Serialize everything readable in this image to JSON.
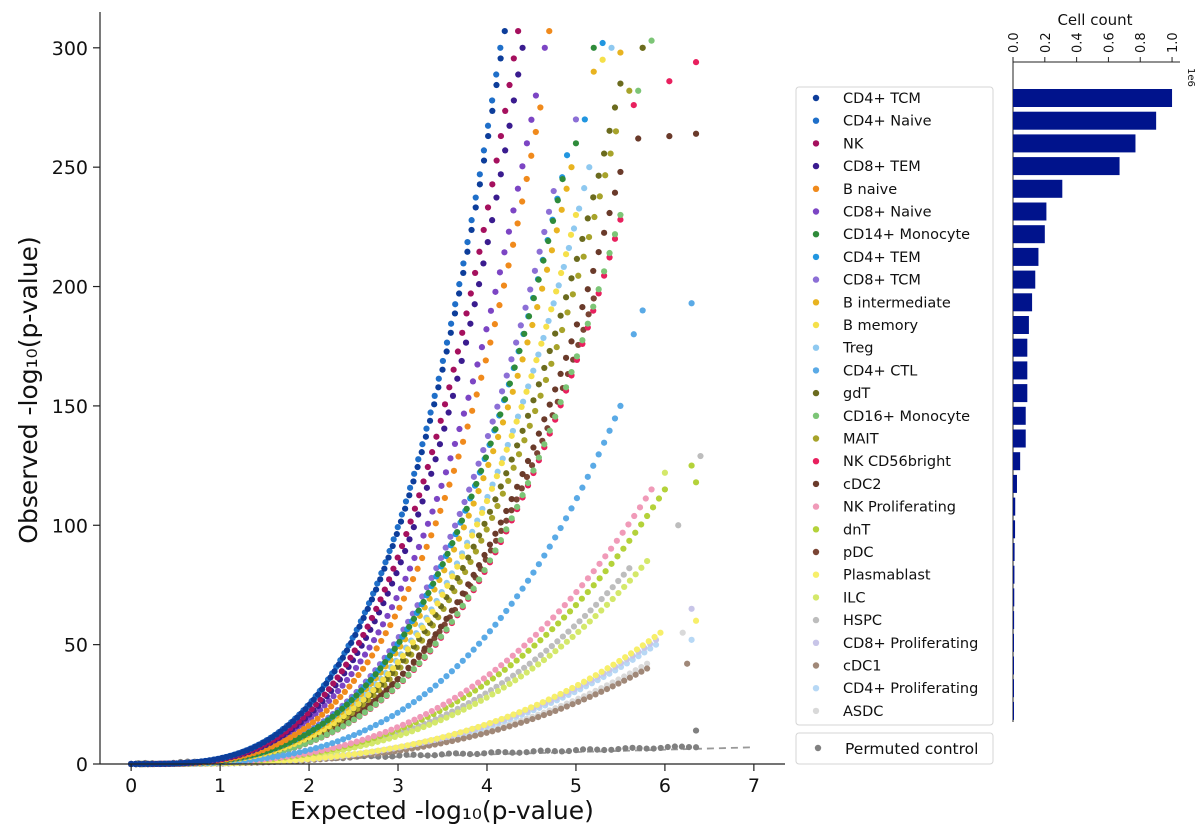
{
  "chart_data": [
    {
      "type": "scatter",
      "subtype": "qq-plot",
      "xlabel": "Expected -log₁₀(p-value)",
      "ylabel": "Observed -log₁₀(p-value)",
      "xlim": [
        -0.35,
        7.35
      ],
      "ylim": [
        0,
        315
      ],
      "xticks": [
        0,
        1,
        2,
        3,
        4,
        5,
        6,
        7
      ],
      "yticks": [
        0,
        50,
        100,
        150,
        200,
        250,
        300
      ],
      "legend_position": "right",
      "series": [
        {
          "name": "CD4+ TCM",
          "color": "#0d3d9a",
          "xmax": 4.2,
          "ymax": 307,
          "shape": 3.4,
          "tail": []
        },
        {
          "name": "CD4+ Naive",
          "color": "#1f6fc9",
          "xmax": 4.15,
          "ymax": 300,
          "shape": 3.4,
          "tail": []
        },
        {
          "name": "NK",
          "color": "#a5105e",
          "xmax": 4.35,
          "ymax": 307,
          "shape": 3.4,
          "tail": []
        },
        {
          "name": "CD8+ TEM",
          "color": "#3a1c8f",
          "xmax": 4.4,
          "ymax": 300,
          "shape": 3.4,
          "tail": []
        },
        {
          "name": "B naive",
          "color": "#f08a1c",
          "xmax": 4.6,
          "ymax": 275,
          "shape": 3.4,
          "tail": [
            [
              4.7,
              307
            ]
          ]
        },
        {
          "name": "CD8+ Naive",
          "color": "#7c45c4",
          "xmax": 4.55,
          "ymax": 280,
          "shape": 3.3,
          "tail": [
            [
              4.65,
              300
            ]
          ]
        },
        {
          "name": "CD14+ Monocyte",
          "color": "#2e8b3a",
          "xmax": 4.85,
          "ymax": 245,
          "shape": 3.3,
          "tail": [
            [
              5.0,
              260
            ],
            [
              5.2,
              300
            ]
          ]
        },
        {
          "name": "CD4+ TEM",
          "color": "#2196e0",
          "xmax": 4.9,
          "ymax": 255,
          "shape": 3.3,
          "tail": [
            [
              5.1,
              270
            ],
            [
              5.3,
              302
            ]
          ]
        },
        {
          "name": "CD8+ TCM",
          "color": "#8c6fd6",
          "xmax": 4.75,
          "ymax": 240,
          "shape": 3.3,
          "tail": [
            [
              5.0,
              270
            ]
          ]
        },
        {
          "name": "B intermediate",
          "color": "#e8b320",
          "xmax": 4.95,
          "ymax": 250,
          "shape": 3.3,
          "tail": [
            [
              5.2,
              290
            ],
            [
              5.5,
              298
            ]
          ]
        },
        {
          "name": "B memory",
          "color": "#f5e04a",
          "xmax": 5.0,
          "ymax": 230,
          "shape": 3.3,
          "tail": [
            [
              5.3,
              295
            ]
          ]
        },
        {
          "name": "Treg",
          "color": "#8fc9f0",
          "xmax": 5.15,
          "ymax": 250,
          "shape": 3.2,
          "tail": [
            [
              5.4,
              300
            ]
          ]
        },
        {
          "name": "CD4+ CTL",
          "color": "#5aaae6",
          "xmax": 5.5,
          "ymax": 150,
          "shape": 3.2,
          "tail": [
            [
              5.65,
              180
            ],
            [
              5.75,
              190
            ],
            [
              6.3,
              193
            ]
          ]
        },
        {
          "name": "gdT",
          "color": "#6b6b1e",
          "xmax": 5.5,
          "ymax": 285,
          "shape": 3.2,
          "tail": [
            [
              5.75,
              300
            ]
          ]
        },
        {
          "name": "CD16+ Monocyte",
          "color": "#7cc576",
          "xmax": 5.5,
          "ymax": 230,
          "shape": 3.2,
          "tail": [
            [
              5.7,
              282
            ],
            [
              5.85,
              303
            ]
          ]
        },
        {
          "name": "MAIT",
          "color": "#a7a32a",
          "xmax": 5.45,
          "ymax": 265,
          "shape": 3.2,
          "tail": [
            [
              5.6,
              282
            ],
            [
              5.75,
              300
            ]
          ]
        },
        {
          "name": "NK CD56bright",
          "color": "#e8205e",
          "xmax": 5.5,
          "ymax": 228,
          "shape": 3.2,
          "tail": [
            [
              5.65,
              276
            ],
            [
              6.05,
              286
            ],
            [
              6.35,
              294
            ]
          ]
        },
        {
          "name": "cDC2",
          "color": "#6a3a2a",
          "xmax": 5.5,
          "ymax": 248,
          "shape": 3.2,
          "tail": [
            [
              5.7,
              262
            ],
            [
              6.05,
              263
            ],
            [
              6.35,
              264
            ]
          ]
        },
        {
          "name": "NK Proliferating",
          "color": "#f09ab8",
          "xmax": 5.85,
          "ymax": 115,
          "shape": 3.0,
          "tail": []
        },
        {
          "name": "dnT",
          "color": "#b4d23a",
          "xmax": 6.0,
          "ymax": 115,
          "shape": 3.0,
          "tail": [
            [
              6.3,
              125
            ],
            [
              6.35,
              118
            ]
          ]
        },
        {
          "name": "pDC",
          "color": "#7a4434",
          "xmax": 5.2,
          "ymax": 195,
          "shape": 3.1,
          "tail": []
        },
        {
          "name": "Plasmablast",
          "color": "#f7ef6a",
          "xmax": 5.95,
          "ymax": 55,
          "shape": 3.0,
          "tail": [
            [
              6.35,
              60
            ]
          ]
        },
        {
          "name": "ILC",
          "color": "#d4e86a",
          "xmax": 5.8,
          "ymax": 85,
          "shape": 3.0,
          "tail": [
            [
              6.0,
              122
            ]
          ]
        },
        {
          "name": "HSPC",
          "color": "#bdbdbd",
          "xmax": 5.6,
          "ymax": 82,
          "shape": 3.0,
          "tail": [
            [
              6.15,
              100
            ],
            [
              6.4,
              129
            ]
          ]
        },
        {
          "name": "CD8+ Proliferating",
          "color": "#c8c5e8",
          "xmax": 5.9,
          "ymax": 52,
          "shape": 3.0,
          "tail": [
            [
              6.3,
              65
            ]
          ]
        },
        {
          "name": "cDC1",
          "color": "#a08878",
          "xmax": 5.8,
          "ymax": 40,
          "shape": 3.0,
          "tail": [
            [
              6.25,
              42
            ]
          ]
        },
        {
          "name": "CD4+ Proliferating",
          "color": "#b7d8f5",
          "xmax": 5.9,
          "ymax": 50,
          "shape": 3.0,
          "tail": [
            [
              6.3,
              52
            ]
          ]
        },
        {
          "name": "ASDC",
          "color": "#d9d9d9",
          "xmax": 5.8,
          "ymax": 42,
          "shape": 3.0,
          "tail": [
            [
              6.2,
              55
            ]
          ]
        }
      ],
      "control": {
        "name": "Permuted control",
        "color": "#808080",
        "xmax": 6.35,
        "ymax": 8,
        "tail": [
          [
            6.35,
            14
          ]
        ]
      },
      "reference_line": {
        "x": [
          0,
          7
        ],
        "y": [
          0,
          7
        ],
        "style": "dashed",
        "color": "#999999"
      }
    },
    {
      "type": "bar",
      "orientation": "horizontal",
      "title": "Cell count",
      "xlim": [
        0,
        1.05
      ],
      "xticks": [
        0.0,
        0.2,
        0.4,
        0.6,
        0.8,
        1.0
      ],
      "xtick_labels": [
        "0.0",
        "0.2",
        "0.4",
        "0.6",
        "0.8",
        "1.0"
      ],
      "offset_label": "1e6",
      "color": "#00138c",
      "categories": [
        "CD4+ TCM",
        "CD4+ Naive",
        "NK",
        "CD8+ TEM",
        "B naive",
        "CD8+ Naive",
        "CD14+ Monocyte",
        "CD4+ TEM",
        "CD8+ TCM",
        "B intermediate",
        "B memory",
        "Treg",
        "CD4+ CTL",
        "gdT",
        "CD16+ Monocyte",
        "MAIT",
        "NK CD56bright",
        "cDC2",
        "NK Proliferating",
        "dnT",
        "pDC",
        "Plasmablast",
        "ILC",
        "HSPC",
        "CD8+ Proliferating",
        "cDC1",
        "CD4+ Proliferating",
        "ASDC"
      ],
      "values": [
        1.0,
        0.9,
        0.77,
        0.67,
        0.31,
        0.21,
        0.2,
        0.16,
        0.14,
        0.12,
        0.1,
        0.09,
        0.09,
        0.09,
        0.08,
        0.08,
        0.045,
        0.025,
        0.014,
        0.013,
        0.01,
        0.009,
        0.008,
        0.007,
        0.005,
        0.004,
        0.003,
        0.002
      ]
    }
  ]
}
